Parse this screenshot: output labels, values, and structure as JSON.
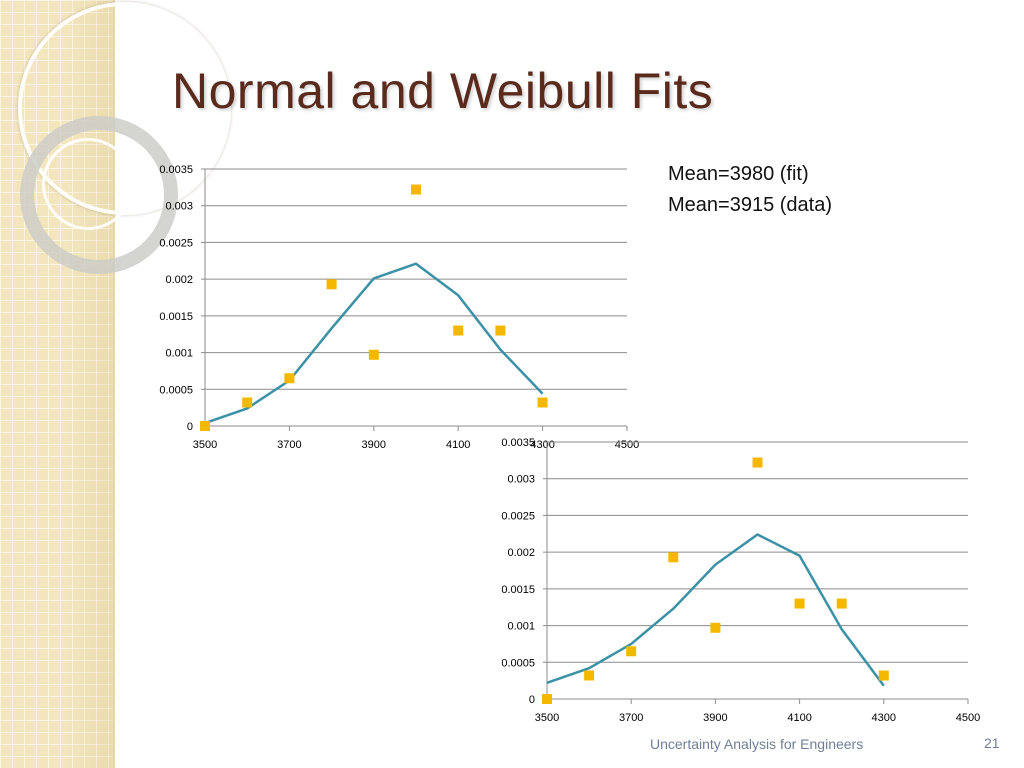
{
  "slide": {
    "title": "Normal and Weibull Fits",
    "notes": [
      "Mean=3980 (fit)",
      "Mean=3915 (data)"
    ],
    "footer": "Uncertainty Analysis for Engineers",
    "page_number": "21"
  },
  "colors": {
    "line": "#3b91a6",
    "marker": "#f5b800",
    "grid": "#8c8c8c",
    "title": "#5a2a1c",
    "footer": "#6e7f9a",
    "sidebar": "#f3e6bd"
  },
  "chart_data": [
    {
      "type": "line",
      "xlim": [
        3500,
        4500
      ],
      "ylim": [
        0,
        0.0035
      ],
      "x_ticks": [
        3500,
        3700,
        3900,
        4100,
        4300,
        4500
      ],
      "y_ticks": [
        0,
        0.0005,
        0.001,
        0.0015,
        0.002,
        0.0025,
        0.003,
        0.0035
      ],
      "y_tick_labels": [
        "0",
        "0.0005",
        "0.001",
        "0.0015",
        "0.002",
        "0.0025",
        "0.003",
        "0.0035"
      ],
      "grid": true,
      "series": [
        {
          "style": "scatter",
          "x": [
            3500,
            3600,
            3700,
            3800,
            3900,
            4000,
            4100,
            4200,
            4300
          ],
          "y": [
            0.0,
            0.00032,
            0.00065,
            0.00193,
            0.00097,
            0.00322,
            0.0013,
            0.0013,
            0.00032
          ]
        },
        {
          "style": "line",
          "x": [
            3500,
            3600,
            3700,
            3800,
            3900,
            4000,
            4100,
            4200,
            4300
          ],
          "y": [
            4e-05,
            0.00024,
            0.00062,
            0.00133,
            0.00201,
            0.00221,
            0.00178,
            0.00104,
            0.00044
          ]
        }
      ]
    },
    {
      "type": "line",
      "xlim": [
        3500,
        4500
      ],
      "ylim": [
        0,
        0.0035
      ],
      "x_ticks": [
        3500,
        3700,
        3900,
        4100,
        4300,
        4500
      ],
      "y_ticks": [
        0,
        0.0005,
        0.001,
        0.0015,
        0.002,
        0.0025,
        0.003,
        0.0035
      ],
      "y_tick_labels": [
        "0",
        "0.0005",
        "0.001",
        "0.0015",
        "0.002",
        "0.0025",
        "0.003",
        "0.0035"
      ],
      "grid": true,
      "series": [
        {
          "style": "scatter",
          "x": [
            3500,
            3600,
            3700,
            3800,
            3900,
            4000,
            4100,
            4200,
            4300
          ],
          "y": [
            0.0,
            0.00032,
            0.00065,
            0.00193,
            0.00097,
            0.00322,
            0.0013,
            0.0013,
            0.00032
          ]
        },
        {
          "style": "line",
          "x": [
            3500,
            3600,
            3700,
            3800,
            3900,
            4000,
            4100,
            4200,
            4300
          ],
          "y": [
            0.00022,
            0.00042,
            0.00075,
            0.00123,
            0.00183,
            0.00224,
            0.00195,
            0.00095,
            0.00018
          ]
        }
      ]
    }
  ]
}
